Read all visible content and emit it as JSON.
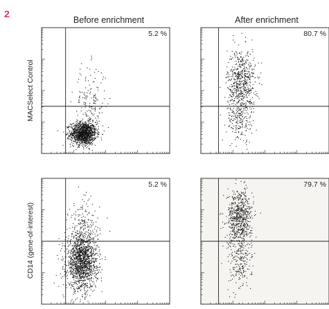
{
  "figure": {
    "label": "2",
    "column_titles": [
      "Before enrichment",
      "After enrichment"
    ],
    "row_labels": [
      "MACSelect Control",
      "CD14 (gene-of-interest)"
    ]
  },
  "chart_data": [
    {
      "type": "scatter",
      "row_label": "MACSelect Control",
      "column_title": "Before enrichment",
      "quadrant_percent": "5.2 %",
      "axis_scale": "log (decades)",
      "xlim": [
        0,
        4
      ],
      "ylim": [
        0,
        4
      ],
      "gate": {
        "x": 0.75,
        "y": 1.5
      },
      "populations": [
        {
          "cx": 1.3,
          "cy": 0.65,
          "sx": 0.2,
          "sy": 0.18,
          "n": 1300
        },
        {
          "cx": 1.5,
          "cy": 1.6,
          "sx": 0.25,
          "sy": 0.6,
          "n": 180
        }
      ],
      "background_tint": false
    },
    {
      "type": "scatter",
      "row_label": "MACSelect Control",
      "column_title": "After enrichment",
      "quadrant_percent": "80.7 %",
      "axis_scale": "log (decades)",
      "xlim": [
        0,
        4
      ],
      "ylim": [
        0,
        4
      ],
      "gate": {
        "x": 0.55,
        "y": 1.5
      },
      "populations": [
        {
          "cx": 1.25,
          "cy": 2.25,
          "sx": 0.22,
          "sy": 0.55,
          "n": 620
        },
        {
          "cx": 1.2,
          "cy": 1.05,
          "sx": 0.2,
          "sy": 0.35,
          "n": 160
        }
      ],
      "background_tint": false
    },
    {
      "type": "scatter",
      "row_label": "CD14 (gene-of-interest)",
      "column_title": "Before enrichment",
      "quadrant_percent": "5.2 %",
      "axis_scale": "log (decades)",
      "xlim": [
        0,
        4
      ],
      "ylim": [
        0,
        4
      ],
      "gate": {
        "x": 0.75,
        "y": 2.0
      },
      "populations": [
        {
          "cx": 1.25,
          "cy": 1.35,
          "sx": 0.24,
          "sy": 0.45,
          "n": 1500
        },
        {
          "cx": 1.3,
          "cy": 2.5,
          "sx": 0.25,
          "sy": 0.45,
          "n": 160
        }
      ],
      "background_tint": false
    },
    {
      "type": "scatter",
      "row_label": "CD14 (gene-of-interest)",
      "column_title": "After enrichment",
      "quadrant_percent": "79.7 %",
      "axis_scale": "log (decades)",
      "xlim": [
        0,
        4
      ],
      "ylim": [
        0,
        4
      ],
      "gate": {
        "x": 0.55,
        "y": 2.0
      },
      "populations": [
        {
          "cx": 1.2,
          "cy": 2.75,
          "sx": 0.2,
          "sy": 0.45,
          "n": 650
        },
        {
          "cx": 1.2,
          "cy": 1.3,
          "sx": 0.18,
          "sy": 0.45,
          "n": 190
        }
      ],
      "background_tint": true
    }
  ]
}
